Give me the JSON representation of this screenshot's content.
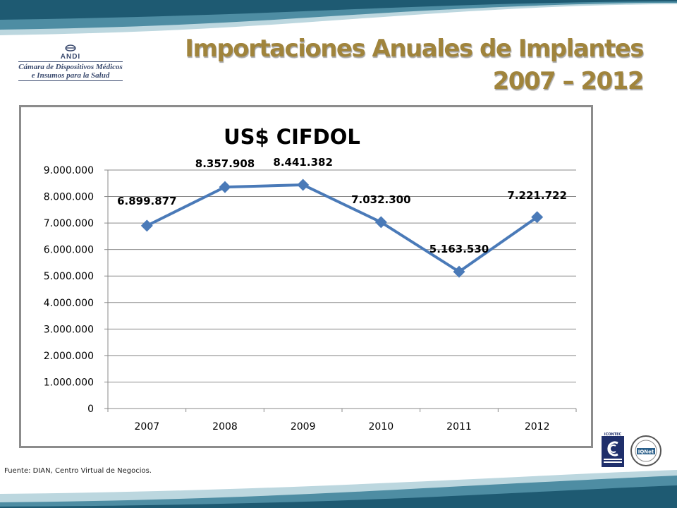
{
  "header": {
    "title_line1": "Importaciones Anuales de Implantes",
    "title_line2": "2007 – 2012"
  },
  "logo": {
    "abbr": "ANDI",
    "line1": "Cámara de Dispositivos Médicos",
    "line2": "e Insumos para la Salud"
  },
  "footer": {
    "source": "Fuente: DIAN, Centro Virtual de Negocios."
  },
  "certifications": {
    "cert1_text": "ICONTEC",
    "cert2_text": "IQNet"
  },
  "colors": {
    "title": "#a0843c",
    "series": "#4a7ab8",
    "wave_dark": "#1e5a72",
    "wave_light": "#9ec3cf"
  },
  "chart_data": {
    "type": "line",
    "title": "US$ CIFDOL",
    "categories": [
      "2007",
      "2008",
      "2009",
      "2010",
      "2011",
      "2012"
    ],
    "series": [
      {
        "values": [
          6899877,
          8357908,
          8441382,
          7032300,
          5163530,
          7221722
        ],
        "labels": [
          "6.899.877",
          "8.357.908",
          "8.441.382",
          "7.032.300",
          "5.163.530",
          "7.221.722"
        ]
      }
    ],
    "ylim": [
      0,
      9000000
    ],
    "yticks": [
      0,
      1000000,
      2000000,
      3000000,
      4000000,
      5000000,
      6000000,
      7000000,
      8000000,
      9000000
    ],
    "ytick_labels": [
      "0",
      "1.000.000",
      "2.000.000",
      "3.000.000",
      "4.000.000",
      "5.000.000",
      "6.000.000",
      "7.000.000",
      "8.000.000",
      "9.000.000"
    ],
    "grid": true,
    "legend": "none"
  }
}
